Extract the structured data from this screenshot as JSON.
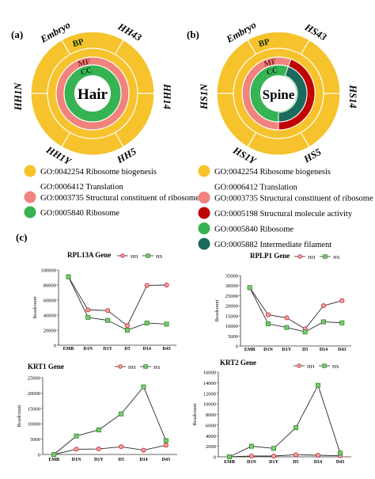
{
  "panels": {
    "a": {
      "letter": "(a)"
    },
    "b": {
      "letter": "(b)"
    },
    "c": {
      "letter": "(c)"
    }
  },
  "colors": {
    "bp": "#f6c32c",
    "mf": "#f0837c",
    "cc": "#36b352",
    "structural_molecule": "#c00000",
    "intermediate_filament": "#1a6b5c",
    "hh_series": "#c0202a",
    "hs_series": "#2e8b1f"
  },
  "rings": {
    "a": {
      "center": "Hair",
      "ring_labels": [
        "BP",
        "MF",
        "CC"
      ],
      "sample_labels": [
        "Embryo",
        "HH43",
        "HH14",
        "HH5",
        "HH1Y",
        "HH1N"
      ],
      "legend": [
        {
          "text": "GO:0042254 Ribosome biogenesis",
          "color": "#f6c32c"
        },
        {
          "text": "GO:0006412 Translation",
          "color": ""
        },
        {
          "text": "GO:0003735 Structural constituent of ribosome",
          "color": "#f0837c"
        },
        {
          "text": "GO:0005840 Ribosome",
          "color": "#36b352"
        }
      ]
    },
    "b": {
      "center": "Spine",
      "ring_labels": [
        "BP",
        "MF",
        "CC"
      ],
      "sample_labels": [
        "Embryo",
        "HS43",
        "HS14",
        "HS5",
        "HS1Y",
        "HS1N"
      ],
      "legend": [
        {
          "text": "GO:0042254 Ribosome biogenesis",
          "color": "#f6c32c"
        },
        {
          "text": "GO:0006412 Translation",
          "color": ""
        },
        {
          "text": "GO:0003735 Structural constituent of ribosome",
          "color": "#f0837c"
        },
        {
          "text": "GO:0005198 Structural molecule activity",
          "color": "#c00000"
        },
        {
          "text": "GO:0005840 Ribosome",
          "color": "#36b352"
        },
        {
          "text": "GO:0005882 Intermediate filament",
          "color": "#1a6b5c"
        }
      ]
    }
  },
  "chart_data": [
    {
      "type": "line",
      "title": "RPL13A Gene",
      "ylabel": "Readcount",
      "categories": [
        "EMB",
        "D1N",
        "D1Y",
        "D5",
        "D14",
        "D43"
      ],
      "ylim": [
        0,
        100000
      ],
      "yticks": [
        0,
        20000,
        40000,
        60000,
        80000,
        100000
      ],
      "series": [
        {
          "name": "HH",
          "values": [
            91000,
            47000,
            46000,
            26000,
            79500,
            80000
          ]
        },
        {
          "name": "HS",
          "values": [
            91000,
            37000,
            33000,
            20000,
            29500,
            28000
          ]
        }
      ]
    },
    {
      "type": "line",
      "title": "RPLP1 Gene",
      "ylabel": "Readcount",
      "categories": [
        "EMB",
        "D1N",
        "D1Y",
        "D5",
        "D14",
        "D43"
      ],
      "ylim": [
        0,
        35000
      ],
      "yticks": [
        0,
        5000,
        10000,
        15000,
        20000,
        25000,
        30000,
        35000
      ],
      "series": [
        {
          "name": "HH",
          "values": [
            29000,
            15500,
            14000,
            8500,
            20000,
            22500
          ]
        },
        {
          "name": "HS",
          "values": [
            29000,
            11000,
            9200,
            7000,
            12000,
            11500
          ]
        }
      ]
    },
    {
      "type": "line",
      "title": "KRT1 Gene",
      "ylabel": "Readcount",
      "categories": [
        "EMB",
        "D1N",
        "D1Y",
        "D5",
        "D14",
        "D43"
      ],
      "ylim": [
        0,
        25000
      ],
      "yticks": [
        0,
        5000,
        10000,
        15000,
        20000,
        25000
      ],
      "series": [
        {
          "name": "HH",
          "values": [
            0,
            1700,
            1800,
            2500,
            1400,
            3000
          ]
        },
        {
          "name": "HS",
          "values": [
            0,
            6000,
            8000,
            13200,
            22000,
            4500
          ]
        }
      ]
    },
    {
      "type": "line",
      "title": "KRT2 Gene",
      "ylabel": "Readcount",
      "categories": [
        "EMB",
        "D1N",
        "D1Y",
        "D5",
        "D14",
        "D43"
      ],
      "ylim": [
        0,
        16000
      ],
      "yticks": [
        0,
        2000,
        4000,
        6000,
        8000,
        10000,
        12000,
        14000,
        16000
      ],
      "series": [
        {
          "name": "HH",
          "values": [
            0,
            150,
            150,
            400,
            300,
            200
          ]
        },
        {
          "name": "HS",
          "values": [
            0,
            2000,
            1600,
            5500,
            13500,
            700
          ]
        }
      ]
    }
  ]
}
